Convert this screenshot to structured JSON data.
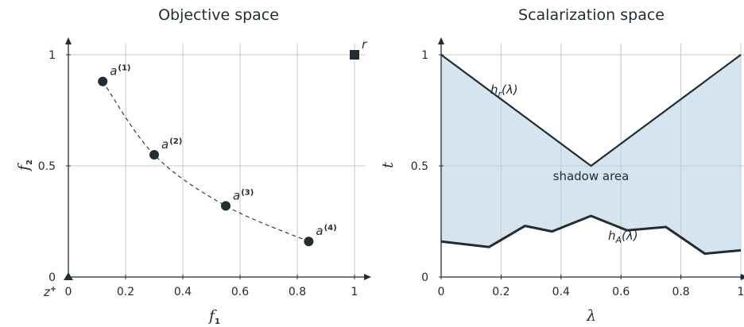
{
  "colors": {
    "ink": "#222c33",
    "shadow": "#d6e4ef",
    "grid": "#c8c8c8"
  },
  "chart_data": [
    {
      "type": "scatter",
      "title": "Objective space",
      "xlabel": "f",
      "xlabel_sub": "1",
      "ylabel": "f",
      "ylabel_sub": "2",
      "xlim": [
        0,
        1
      ],
      "ylim": [
        0,
        1
      ],
      "xticks": [
        "0",
        "0.2",
        "0.4",
        "0.6",
        "0.8",
        "1"
      ],
      "yticks": [
        "0",
        "0.5",
        "1"
      ],
      "grid": true,
      "points": [
        {
          "label": "a",
          "index": "(1)",
          "x": 0.12,
          "y": 0.88
        },
        {
          "label": "a",
          "index": "(2)",
          "x": 0.3,
          "y": 0.55
        },
        {
          "label": "a",
          "index": "(3)",
          "x": 0.55,
          "y": 0.32
        },
        {
          "label": "a",
          "index": "(4)",
          "x": 0.84,
          "y": 0.16
        }
      ],
      "curve": {
        "style": "dashed",
        "x": [
          0.12,
          0.3,
          0.55,
          0.84
        ],
        "y": [
          0.88,
          0.55,
          0.32,
          0.16
        ]
      },
      "reference_point": {
        "label": "r",
        "x": 1,
        "y": 1,
        "marker": "square"
      },
      "ideal_point": {
        "label": "z",
        "sup": "+",
        "x": 0,
        "y": 0,
        "marker": "triangle"
      }
    },
    {
      "type": "area",
      "title": "Scalarization space",
      "xlabel": "λ",
      "ylabel": "t",
      "xlim": [
        0,
        1
      ],
      "ylim": [
        0,
        1
      ],
      "xticks": [
        "0",
        "0.2",
        "0.4",
        "0.6",
        "0.8",
        "1"
      ],
      "yticks": [
        "0",
        "0.5",
        "1"
      ],
      "grid": true,
      "series": [
        {
          "name": "h_r(λ)",
          "x": [
            0,
            0.5,
            1
          ],
          "y": [
            1.0,
            0.5,
            1.0
          ]
        },
        {
          "name": "h_A(λ)",
          "x": [
            0,
            0.16,
            0.28,
            0.37,
            0.5,
            0.62,
            0.75,
            0.88,
            1
          ],
          "y": [
            0.16,
            0.135,
            0.23,
            0.205,
            0.275,
            0.21,
            0.225,
            0.105,
            0.12
          ]
        }
      ],
      "annotations": [
        {
          "text": "shadow area",
          "x": 0.5,
          "y": 0.45
        }
      ]
    }
  ]
}
